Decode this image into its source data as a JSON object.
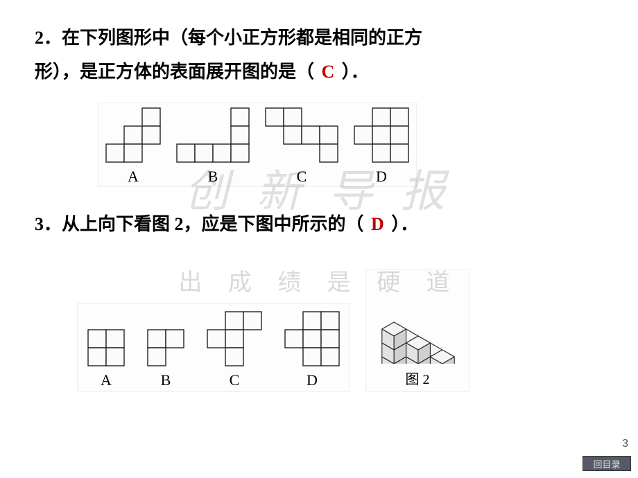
{
  "watermark_top": "创 新 导 报",
  "watermark_bottom": "出 成 绩 是 硬 道",
  "q2": {
    "number": "2",
    "text_line1": "．在下列图形中（每个小正方形都是相同的正方",
    "text_line2": "形），是正方体的表面展开图的是（",
    "answer": "C",
    "text_end": "）．"
  },
  "q3": {
    "number": "3",
    "text": "．从上向下看图 2，应是下图中所示的（",
    "answer": "D",
    "text_end": "）．"
  },
  "labels": {
    "A": "A",
    "B": "B",
    "C": "C",
    "D": "D",
    "fig2": "图 2"
  },
  "page_number": "3",
  "back_button": "回目录",
  "style": {
    "cell": 26,
    "stroke": "#222222",
    "stroke_width": 1.4,
    "fill": "#fbfbfb",
    "answer_color": "#c00000",
    "bg": "#ffffff",
    "iso_fill_top": "#f5f5f5",
    "iso_fill_left": "#e2e2e2",
    "iso_fill_right": "#d0d0d0"
  },
  "nets": {
    "A": {
      "cells": [
        [
          2,
          0
        ],
        [
          1,
          1
        ],
        [
          2,
          1
        ],
        [
          0,
          2
        ],
        [
          1,
          2
        ]
      ],
      "cols": 3,
      "rows": 3
    },
    "B": {
      "cells": [
        [
          3,
          0
        ],
        [
          3,
          1
        ],
        [
          0,
          2
        ],
        [
          1,
          2
        ],
        [
          2,
          2
        ],
        [
          3,
          2
        ]
      ],
      "cols": 4,
      "rows": 3
    },
    "C": {
      "cells": [
        [
          0,
          0
        ],
        [
          1,
          0
        ],
        [
          1,
          1
        ],
        [
          2,
          1
        ],
        [
          3,
          1
        ],
        [
          3,
          2
        ]
      ],
      "cols": 4,
      "rows": 3
    },
    "D": {
      "cells": [
        [
          1,
          0
        ],
        [
          2,
          0
        ],
        [
          0,
          1
        ],
        [
          1,
          1
        ],
        [
          2,
          1
        ],
        [
          1,
          2
        ],
        [
          2,
          2
        ]
      ],
      "cols": 3,
      "rows": 3
    }
  },
  "topviews": {
    "A": {
      "cells": [
        [
          0,
          0
        ],
        [
          1,
          0
        ],
        [
          0,
          1
        ],
        [
          1,
          1
        ]
      ],
      "cols": 2,
      "rows": 2
    },
    "B": {
      "cells": [
        [
          0,
          0
        ],
        [
          1,
          0
        ],
        [
          0,
          1
        ]
      ],
      "cols": 2,
      "rows": 2
    },
    "C": {
      "cells": [
        [
          1,
          0
        ],
        [
          2,
          0
        ],
        [
          0,
          1
        ],
        [
          1,
          1
        ],
        [
          1,
          2
        ]
      ],
      "cols": 3,
      "rows": 3
    },
    "D": {
      "cells": [
        [
          1,
          0
        ],
        [
          2,
          0
        ],
        [
          0,
          1
        ],
        [
          1,
          1
        ],
        [
          2,
          1
        ],
        [
          1,
          2
        ],
        [
          2,
          2
        ]
      ],
      "cols": 3,
      "rows": 3
    }
  }
}
